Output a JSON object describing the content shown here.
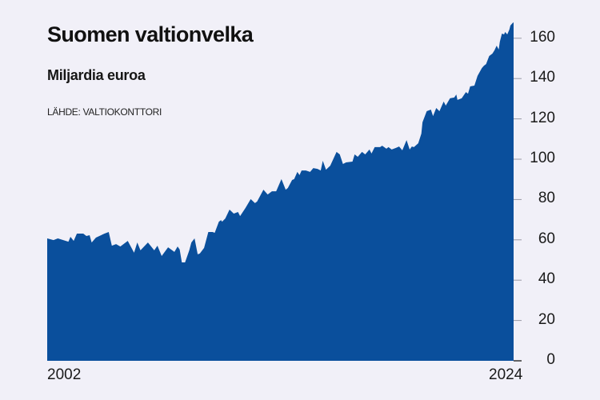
{
  "header": {
    "title": "Suomen valtionvelka",
    "subtitle": "Miljardia euroa",
    "source": "LÄHDE: VALTIOKONTTORI"
  },
  "colors": {
    "fill": "#0a4f9c",
    "background": "#f1f0f8",
    "tick": "#9a9aa6"
  },
  "axis": {
    "y_ticks": [
      "0",
      "20",
      "40",
      "60",
      "80",
      "100",
      "120",
      "140",
      "160"
    ],
    "x_start_label": "2002",
    "x_end_label": "2024"
  },
  "chart_data": {
    "type": "area",
    "title": "Suomen valtionvelka",
    "subtitle": "Miljardia euroa",
    "source": "LÄHDE: VALTIOKONTTORI",
    "xlabel": "",
    "ylabel": "Miljardia euroa",
    "xlim": [
      2002,
      2024
    ],
    "ylim": [
      0,
      170
    ],
    "y_ticks": [
      0,
      20,
      40,
      60,
      80,
      100,
      120,
      140,
      160
    ],
    "x_tick_labels": [
      "2002",
      "2024"
    ],
    "grid": false,
    "legend": "none",
    "series": [
      {
        "name": "Valtionvelka",
        "x": [
          2002.0,
          2002.3,
          2002.5,
          2003.0,
          2003.1,
          2003.25,
          2003.4,
          2003.7,
          2003.85,
          2004.0,
          2004.1,
          2004.3,
          2004.7,
          2004.9,
          2005.05,
          2005.25,
          2005.45,
          2005.8,
          2006.1,
          2006.25,
          2006.4,
          2006.75,
          2007.05,
          2007.2,
          2007.4,
          2007.7,
          2008.0,
          2008.15,
          2008.25,
          2008.35,
          2008.5,
          2008.7,
          2008.8,
          2008.95,
          2009.1,
          2009.2,
          2009.4,
          2009.6,
          2009.8,
          2009.9,
          2010.1,
          2010.2,
          2010.25,
          2010.4,
          2010.6,
          2010.8,
          2011.0,
          2011.1,
          2011.35,
          2011.6,
          2011.8,
          2011.9,
          2012.2,
          2012.4,
          2012.6,
          2012.8,
          2013.05,
          2013.25,
          2013.35,
          2013.55,
          2013.65,
          2013.8,
          2013.9,
          2014.0,
          2014.2,
          2014.4,
          2014.55,
          2014.75,
          2014.9,
          2015.0,
          2015.15,
          2015.35,
          2015.65,
          2015.8,
          2015.95,
          2016.1,
          2016.4,
          2016.5,
          2016.65,
          2016.85,
          2017.0,
          2017.2,
          2017.3,
          2017.45,
          2017.7,
          2017.8,
          2018.0,
          2018.1,
          2018.25,
          2018.45,
          2018.6,
          2018.75,
          2018.95,
          2019.1,
          2019.2,
          2019.3,
          2019.5,
          2019.65,
          2019.7,
          2019.9,
          2020.1,
          2020.2,
          2020.35,
          2020.5,
          2020.7,
          2020.8,
          2021.0,
          2021.2,
          2021.3,
          2021.35,
          2021.55,
          2021.75,
          2021.85,
          2021.95,
          2022.15,
          2022.3,
          2022.5,
          2022.6,
          2022.7,
          2022.85,
          2023.0,
          2023.1,
          2023.2,
          2023.3,
          2023.35,
          2023.45,
          2023.55,
          2023.6,
          2023.7,
          2023.8,
          2023.85,
          2023.95,
          2024.0
        ],
        "values": [
          60.7,
          59.9,
          60.7,
          59.1,
          61.5,
          59.5,
          63.1,
          63.1,
          61.9,
          62.3,
          58.7,
          61.1,
          63.1,
          63.9,
          57.1,
          57.9,
          56.7,
          59.5,
          53.6,
          58.7,
          54.8,
          58.7,
          54.8,
          57.1,
          52.0,
          56.3,
          54.0,
          56.7,
          55.2,
          48.8,
          48.8,
          54.8,
          58.7,
          60.7,
          52.8,
          53.2,
          56.0,
          63.9,
          63.9,
          63.5,
          69.0,
          69.8,
          69.0,
          70.6,
          75.0,
          73.0,
          73.8,
          71.8,
          75.8,
          80.2,
          78.2,
          79.0,
          84.9,
          82.5,
          84.1,
          84.1,
          90.1,
          84.9,
          85.7,
          89.7,
          90.1,
          93.7,
          92.1,
          94.4,
          94.4,
          93.7,
          95.6,
          95.2,
          94.4,
          99.2,
          94.8,
          96.8,
          103.6,
          102.4,
          97.6,
          98.4,
          98.8,
          102.4,
          101.2,
          103.6,
          102.4,
          104.8,
          102.8,
          106.0,
          106.0,
          106.7,
          105.2,
          106.0,
          104.8,
          105.6,
          106.3,
          104.4,
          109.5,
          104.8,
          106.3,
          106.0,
          107.9,
          112.7,
          118.3,
          123.8,
          124.6,
          121.4,
          125.4,
          123.8,
          128.6,
          126.6,
          130.2,
          130.6,
          132.1,
          129.4,
          130.2,
          133.3,
          132.5,
          136.1,
          136.5,
          141.3,
          145.2,
          146.4,
          147.2,
          151.2,
          152.4,
          154.0,
          156.3,
          154.4,
          158.3,
          162.3,
          161.9,
          163.1,
          161.9,
          164.3,
          166.3,
          167.5,
          167.9
        ]
      }
    ]
  }
}
